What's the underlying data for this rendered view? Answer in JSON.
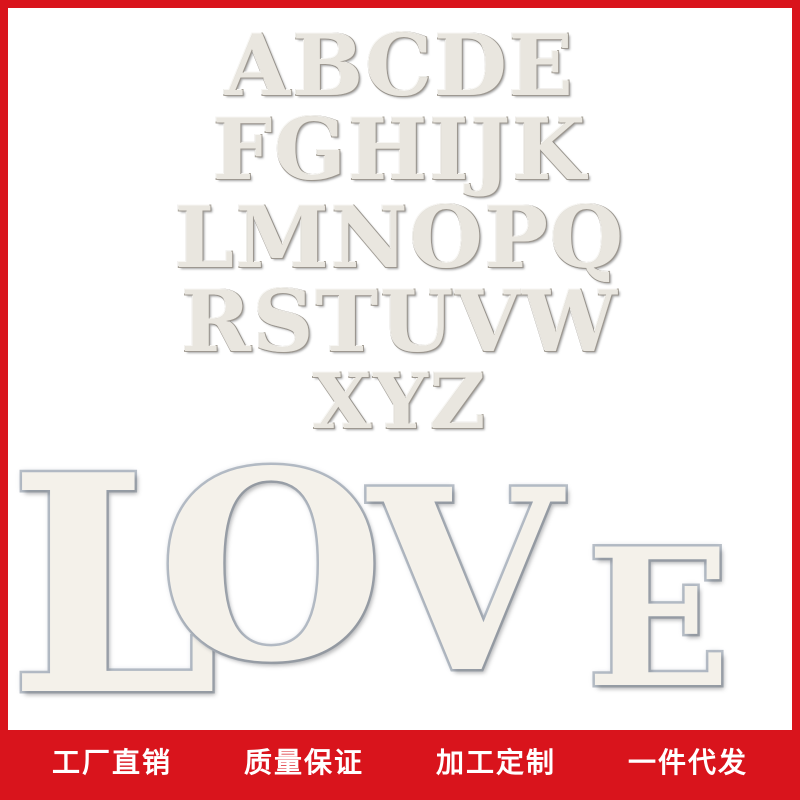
{
  "alphabet": {
    "rows": [
      [
        "A",
        "B",
        "C",
        "D",
        "E"
      ],
      [
        "F",
        "G",
        "H",
        "I",
        "J",
        "K"
      ],
      [
        "L",
        "M",
        "N",
        "O",
        "P",
        "Q"
      ],
      [
        "R",
        "S",
        "T",
        "U",
        "V",
        "W"
      ],
      [
        "X",
        "Y",
        "Z"
      ]
    ]
  },
  "love_word": {
    "letters": [
      "L",
      "O",
      "V",
      "E"
    ]
  },
  "banner": {
    "color": "#d9141c",
    "items": [
      "工厂直销",
      "质量保证",
      "加工定制",
      "一件代发"
    ]
  }
}
